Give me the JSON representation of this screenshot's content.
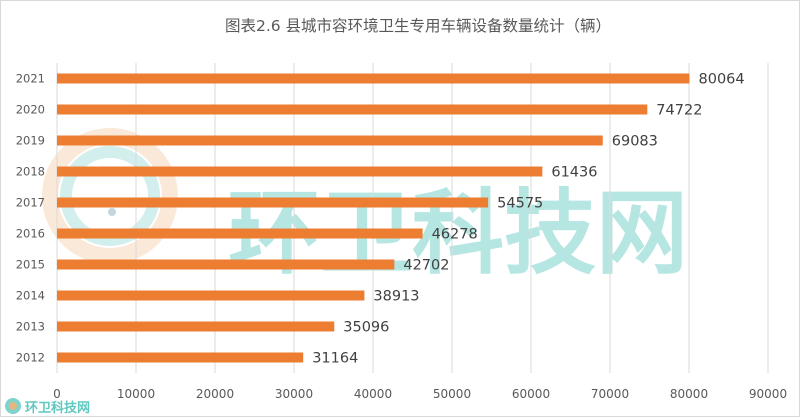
{
  "chart_data": {
    "type": "bar",
    "orientation": "horizontal",
    "title": "图表2.6 县城市容环境卫生专用车辆设备数量统计（辆）",
    "xlabel": "",
    "ylabel": "",
    "categories": [
      "2021",
      "2020",
      "2019",
      "2018",
      "2017",
      "2016",
      "2015",
      "2014",
      "2013",
      "2012"
    ],
    "values": [
      80064,
      74722,
      69083,
      61436,
      54575,
      46278,
      42702,
      38913,
      35096,
      31164
    ],
    "xlim": [
      0,
      90000
    ],
    "x_ticks": [
      "0",
      "10000",
      "20000",
      "30000",
      "40000",
      "50000",
      "60000",
      "70000",
      "80000",
      "90000"
    ],
    "grid": true,
    "legend": "none",
    "bar_color": "#ed7d31"
  },
  "watermark": {
    "text": "环卫科技网",
    "corner_text": "环卫科技网",
    "color": "#5fc8c0"
  }
}
